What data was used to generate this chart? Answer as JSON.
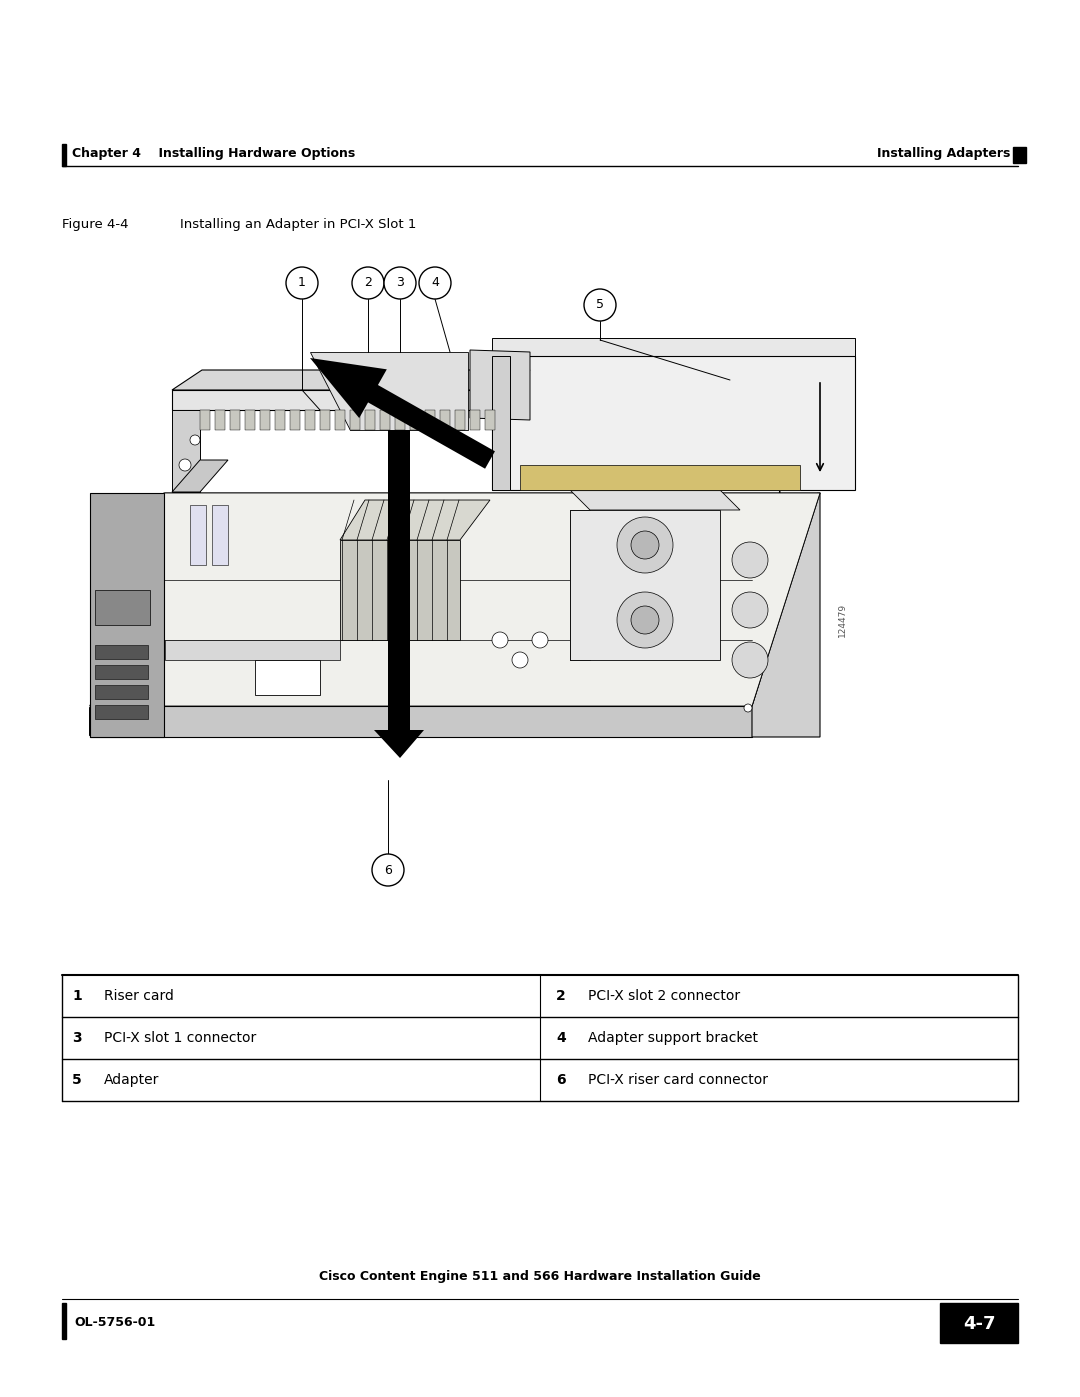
{
  "page_width": 10.8,
  "page_height": 13.97,
  "bg_color": "#ffffff",
  "header_text_left": "Chapter 4    Installing Hardware Options",
  "header_text_right": "Installing Adapters",
  "figure_caption_left": "Figure 4-4",
  "figure_caption_right": "Installing an Adapter in PCI-X Slot 1",
  "table_rows": [
    [
      "1",
      "Riser card",
      "2",
      "PCI-X slot 2 connector"
    ],
    [
      "3",
      "PCI-X slot 1 connector",
      "4",
      "Adapter support bracket"
    ],
    [
      "5",
      "Adapter",
      "6",
      "PCI-X riser card connector"
    ]
  ],
  "footer_center": "Cisco Content Engine 511 and 566 Hardware Installation Guide",
  "footer_left": "OL-5756-01",
  "footer_page": "4-7",
  "sidebar_text": "124479"
}
